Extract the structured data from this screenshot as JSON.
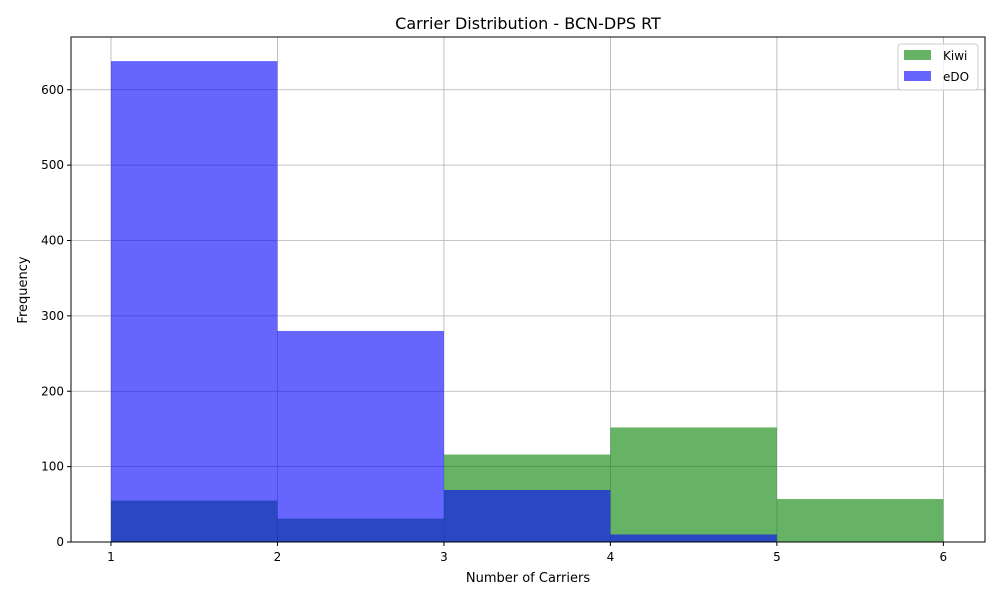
{
  "chart_data": {
    "type": "bar",
    "subtype": "overlapping-histogram",
    "title": "Carrier Distribution - BCN-DPS RT",
    "xlabel": "Number of Carriers",
    "ylabel": "Frequency",
    "bin_edges": [
      1,
      2,
      3,
      4,
      5,
      6
    ],
    "xlim": [
      0.76,
      6.25
    ],
    "ylim": [
      0,
      670
    ],
    "x_ticks": [
      1,
      2,
      3,
      4,
      5,
      6
    ],
    "y_ticks": [
      0,
      100,
      200,
      300,
      400,
      500,
      600
    ],
    "grid": true,
    "legend_position": "top-right",
    "series": [
      {
        "name": "Kiwi",
        "color": "#008000",
        "alpha": 0.6,
        "values": [
          55,
          31,
          116,
          152,
          57
        ]
      },
      {
        "name": "eDO",
        "color": "#0000ff",
        "alpha": 0.6,
        "values": [
          638,
          280,
          69,
          10,
          0
        ]
      }
    ]
  }
}
